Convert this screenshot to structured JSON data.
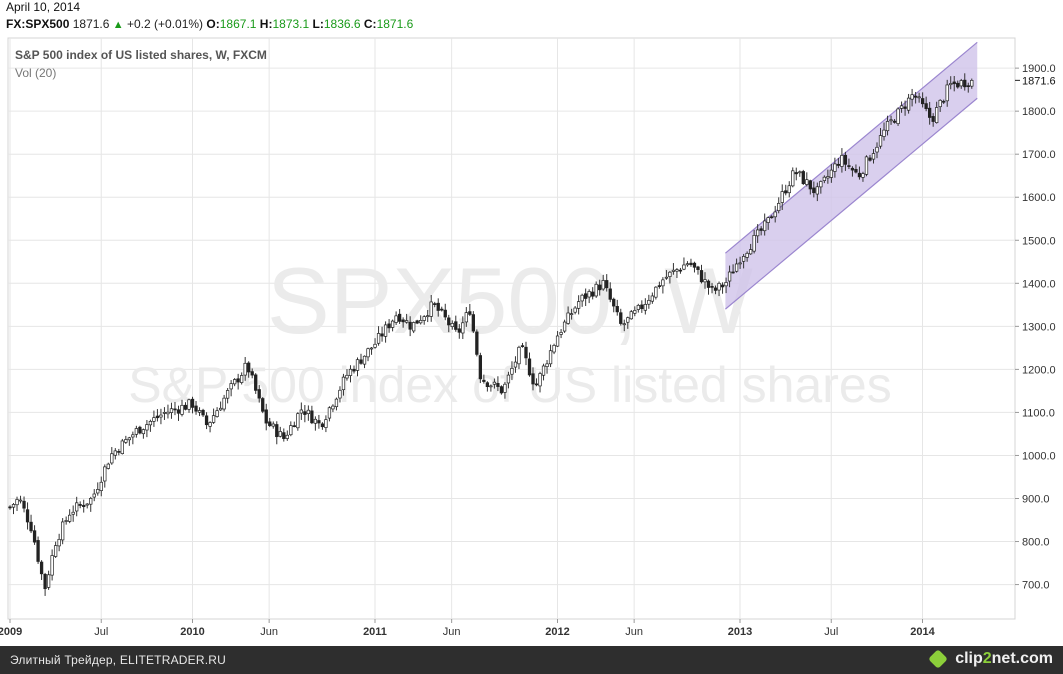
{
  "header": {
    "date": "April 10, 2014",
    "symbol": "FX:SPX500",
    "last": "1871.6",
    "change": "+0.2 (+0.01%)",
    "open_label": "O:",
    "open": "1867.1",
    "high_label": "H:",
    "high": "1873.1",
    "low_label": "L:",
    "low": "1836.6",
    "close_label": "C:",
    "close": "1871.6"
  },
  "footer": {
    "credit": "Элитный Трейдер, ELITETRADER.RU",
    "brand_a": "clip",
    "brand_b": "2",
    "brand_c": "net.com"
  },
  "chart_data": {
    "type": "candlestick",
    "title": "S&P 500 index of US listed shares, W, FXCM",
    "subtitle": "Vol (20)",
    "watermark_symbol": "SPX500, W",
    "watermark_name": "S&P 500 index of US listed shares",
    "y_ticks": [
      "700.0",
      "800.0",
      "900.0",
      "1000.0",
      "1100.0",
      "1200.0",
      "1300.0",
      "1400.0",
      "1500.0",
      "1600.0",
      "1700.0",
      "1800.0",
      "1900.0"
    ],
    "ylim": [
      620,
      1970
    ],
    "last_price_label": "1871.6",
    "x_labels": [
      {
        "label": "2009",
        "t": 0,
        "bold": true
      },
      {
        "label": "Jul",
        "t": 0.5,
        "bold": false
      },
      {
        "label": "2010",
        "t": 1.0,
        "bold": true
      },
      {
        "label": "Jun",
        "t": 1.42,
        "bold": false
      },
      {
        "label": "2011",
        "t": 2.0,
        "bold": true
      },
      {
        "label": "Jun",
        "t": 2.42,
        "bold": false
      },
      {
        "label": "2012",
        "t": 3.0,
        "bold": true
      },
      {
        "label": "Jun",
        "t": 3.42,
        "bold": false
      },
      {
        "label": "2013",
        "t": 4.0,
        "bold": true
      },
      {
        "label": "Jul",
        "t": 4.5,
        "bold": false
      },
      {
        "label": "2014",
        "t": 5.0,
        "bold": true
      }
    ],
    "anchors": [
      {
        "t": 0.0,
        "v": 880
      },
      {
        "t": 0.05,
        "v": 900
      },
      {
        "t": 0.12,
        "v": 830
      },
      {
        "t": 0.19,
        "v": 690
      },
      {
        "t": 0.25,
        "v": 800
      },
      {
        "t": 0.33,
        "v": 870
      },
      {
        "t": 0.45,
        "v": 900
      },
      {
        "t": 0.55,
        "v": 1000
      },
      {
        "t": 0.7,
        "v": 1060
      },
      {
        "t": 0.85,
        "v": 1100
      },
      {
        "t": 1.0,
        "v": 1120
      },
      {
        "t": 1.08,
        "v": 1070
      },
      {
        "t": 1.2,
        "v": 1150
      },
      {
        "t": 1.3,
        "v": 1210
      },
      {
        "t": 1.4,
        "v": 1080
      },
      {
        "t": 1.5,
        "v": 1040
      },
      {
        "t": 1.6,
        "v": 1110
      },
      {
        "t": 1.7,
        "v": 1070
      },
      {
        "t": 1.85,
        "v": 1190
      },
      {
        "t": 2.0,
        "v": 1260
      },
      {
        "t": 2.12,
        "v": 1330
      },
      {
        "t": 2.2,
        "v": 1300
      },
      {
        "t": 2.32,
        "v": 1350
      },
      {
        "t": 2.38,
        "v": 1320
      },
      {
        "t": 2.45,
        "v": 1280
      },
      {
        "t": 2.52,
        "v": 1340
      },
      {
        "t": 2.58,
        "v": 1180
      },
      {
        "t": 2.7,
        "v": 1150
      },
      {
        "t": 2.8,
        "v": 1250
      },
      {
        "t": 2.88,
        "v": 1160
      },
      {
        "t": 3.0,
        "v": 1280
      },
      {
        "t": 3.12,
        "v": 1360
      },
      {
        "t": 3.25,
        "v": 1400
      },
      {
        "t": 3.35,
        "v": 1300
      },
      {
        "t": 3.45,
        "v": 1340
      },
      {
        "t": 3.58,
        "v": 1410
      },
      {
        "t": 3.72,
        "v": 1450
      },
      {
        "t": 3.85,
        "v": 1380
      },
      {
        "t": 3.92,
        "v": 1400
      },
      {
        "t": 4.0,
        "v": 1460
      },
      {
        "t": 4.15,
        "v": 1540
      },
      {
        "t": 4.3,
        "v": 1660
      },
      {
        "t": 4.42,
        "v": 1610
      },
      {
        "t": 4.55,
        "v": 1690
      },
      {
        "t": 4.65,
        "v": 1650
      },
      {
        "t": 4.8,
        "v": 1760
      },
      {
        "t": 4.95,
        "v": 1840
      },
      {
        "t": 5.05,
        "v": 1780
      },
      {
        "t": 5.15,
        "v": 1860
      },
      {
        "t": 5.27,
        "v": 1871.6
      }
    ],
    "channel": {
      "upper": [
        {
          "t": 3.92,
          "v": 1470
        },
        {
          "t": 5.3,
          "v": 1960
        }
      ],
      "lower": [
        {
          "t": 3.92,
          "v": 1340
        },
        {
          "t": 5.3,
          "v": 1830
        }
      ],
      "fill": "#cfc3ea",
      "stroke": "#9b86cf"
    },
    "colors": {
      "up": "#ffffff",
      "down": "#222222",
      "wick": "#333333",
      "grid": "#e6e6e6"
    }
  }
}
